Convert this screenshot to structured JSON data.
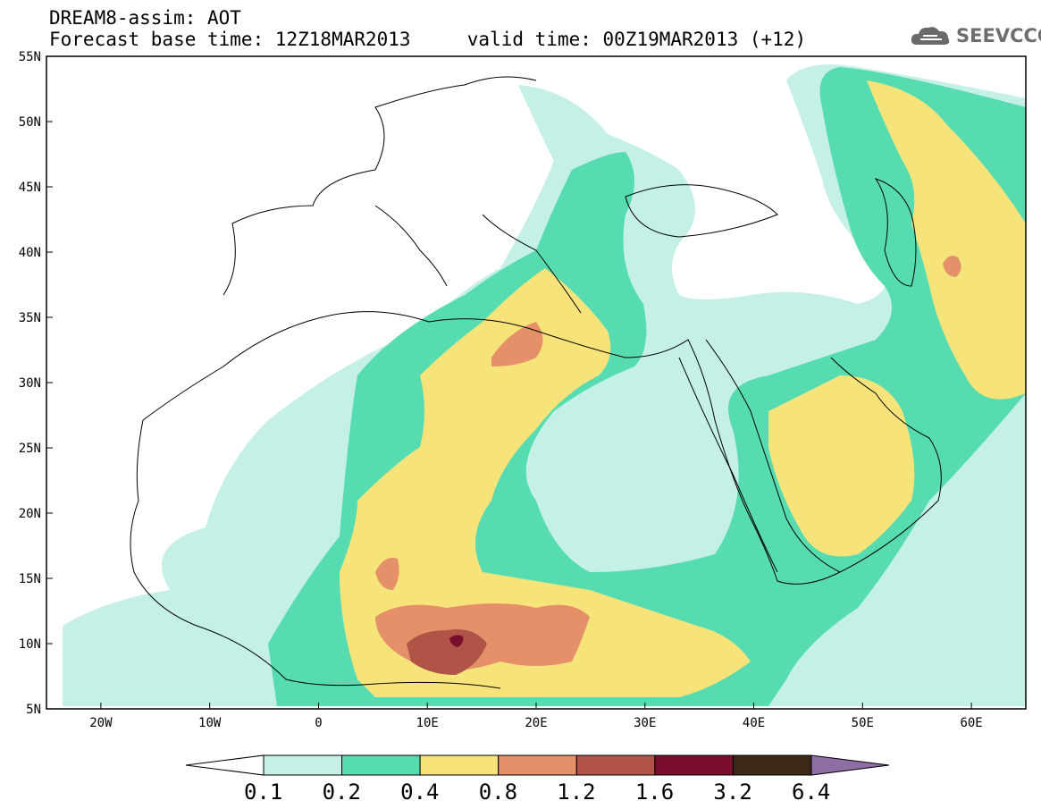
{
  "title": {
    "line1": "DREAM8-assim: AOT",
    "line2": "Forecast base time: 12Z18MAR2013     valid time: 00Z19MAR2013 (+12)"
  },
  "logo": {
    "icon": "cloud-icon",
    "text": "SEEVCCC"
  },
  "map": {
    "lon_range": [
      -25,
      65
    ],
    "lat_range": [
      5,
      55
    ],
    "lon_ticks": [
      "20W",
      "10W",
      "0",
      "10E",
      "20E",
      "30E",
      "40E",
      "50E",
      "60E"
    ],
    "lat_ticks": [
      "55N",
      "50N",
      "45N",
      "40N",
      "35N",
      "30N",
      "25N",
      "20N",
      "15N",
      "10N",
      "5N"
    ]
  },
  "colorbar": {
    "labels": [
      "0.1",
      "0.2",
      "0.4",
      "0.8",
      "1.2",
      "1.6",
      "3.2",
      "6.4"
    ],
    "colors": [
      "#ffffff",
      "#c4f0e8",
      "#57dcb2",
      "#f6e47a",
      "#e59068",
      "#b05448",
      "#7a0e2e",
      "#3c2818",
      "#8e6ea4"
    ]
  }
}
